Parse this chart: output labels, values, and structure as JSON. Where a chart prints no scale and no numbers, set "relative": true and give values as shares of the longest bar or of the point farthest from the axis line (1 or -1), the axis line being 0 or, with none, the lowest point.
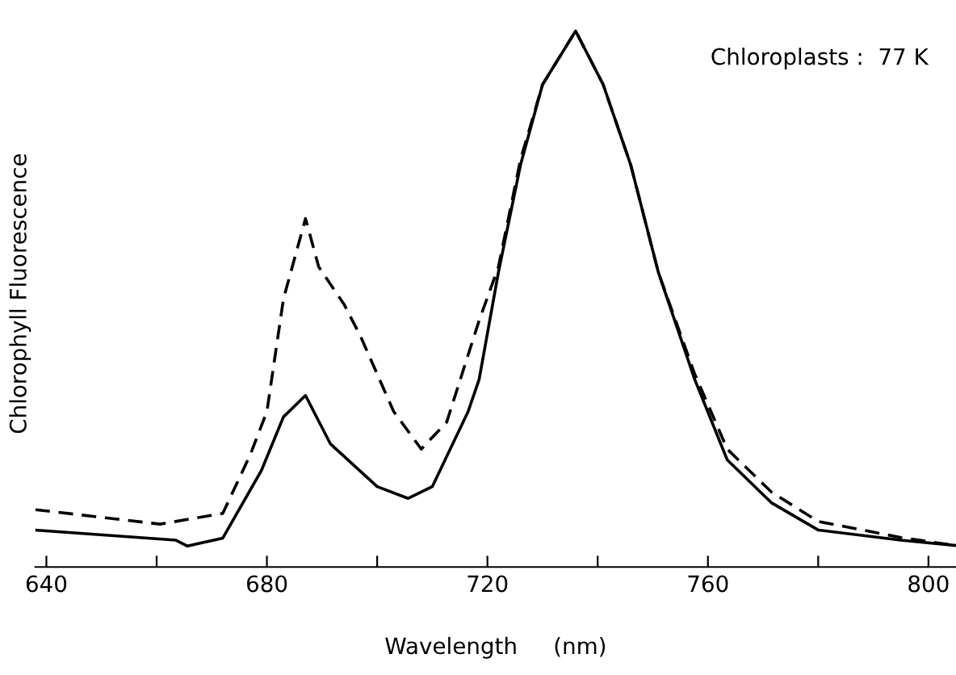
{
  "chart_data": {
    "type": "line",
    "relative": true,
    "xlabel": "Wavelength     (nm)",
    "ylabel": "Chlorophyll Fluorescence",
    "annotations": [
      "Chloroplasts :  77 K"
    ],
    "xlim": [
      638,
      805
    ],
    "xticks": [
      640,
      {
        "value": 660,
        "label": null
      },
      680,
      {
        "value": 700,
        "label": null
      },
      720,
      {
        "value": 740,
        "label": null
      },
      760,
      {
        "value": 780,
        "label": null
      },
      800
    ],
    "series": [
      {
        "color": "#000000",
        "line_style": "solid",
        "x": [
          638,
          663.5,
          665.6,
          672,
          679,
          683,
          687,
          691.5,
          700,
          705.6,
          710,
          716.5,
          718.5,
          722,
          726,
          730,
          736,
          741,
          746,
          751,
          757.6,
          763.5,
          771.5,
          780,
          795,
          805
        ],
        "values": [
          0.069,
          0.05,
          0.039,
          0.054,
          0.18,
          0.28,
          0.32,
          0.23,
          0.15,
          0.128,
          0.15,
          0.29,
          0.35,
          0.55,
          0.75,
          0.9,
          1.0,
          0.9,
          0.75,
          0.55,
          0.35,
          0.2,
          0.12,
          0.069,
          0.05,
          0.04
        ]
      },
      {
        "color": "#000000",
        "line_style": "dashed",
        "x": [
          638,
          660.6,
          672,
          677,
          680,
          683,
          687,
          689.4,
          694,
          697,
          703,
          708,
          712.6,
          718.5,
          722,
          726,
          730,
          736,
          741,
          746,
          751,
          757.6,
          763.5,
          771.5,
          780,
          795,
          805
        ],
        "values": [
          0.107,
          0.08,
          0.1,
          0.21,
          0.29,
          0.5,
          0.65,
          0.56,
          0.49,
          0.43,
          0.29,
          0.22,
          0.27,
          0.46,
          0.56,
          0.76,
          0.9,
          1.0,
          0.9,
          0.75,
          0.55,
          0.36,
          0.22,
          0.14,
          0.085,
          0.055,
          0.04
        ]
      }
    ]
  }
}
